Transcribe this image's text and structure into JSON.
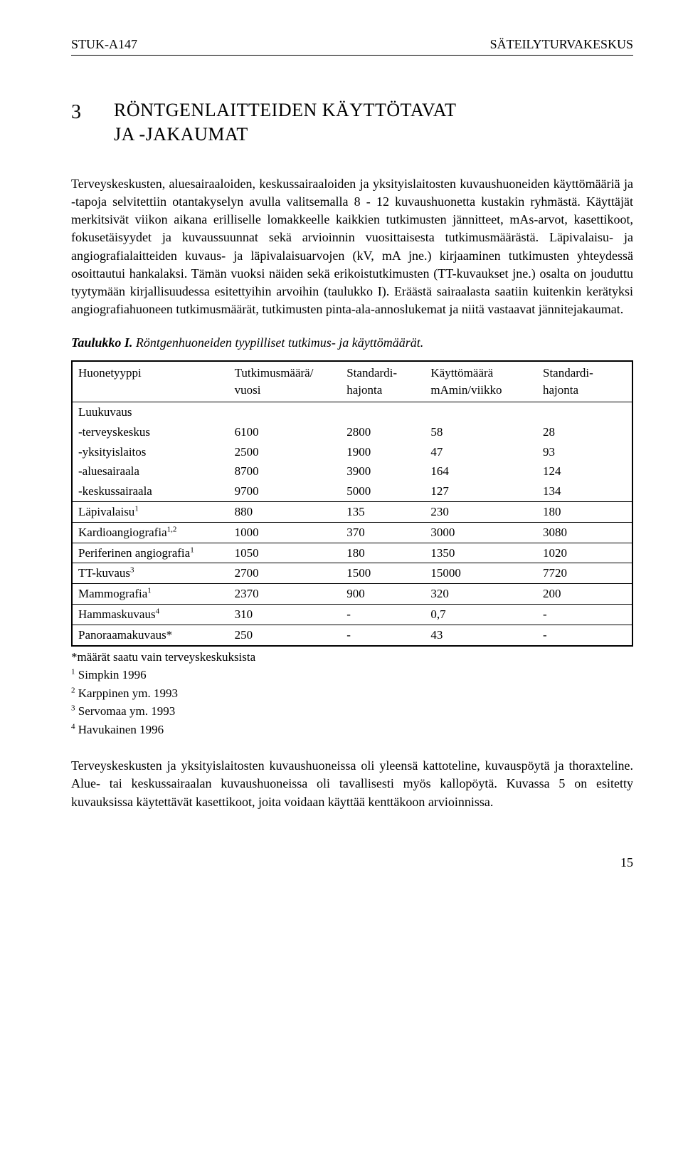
{
  "header": {
    "left": "STUK-A147",
    "right": "SÄTEILYTURVAKESKUS"
  },
  "section": {
    "number": "3",
    "title_line1": "RÖNTGENLAITTEIDEN KÄYTTÖTAVAT",
    "title_line2": "JA -JAKAUMAT"
  },
  "paragraphs": {
    "p1": "Terveyskeskusten, aluesairaaloiden, keskussairaaloiden ja yksityislaitosten kuvaushuoneiden käyttömääriä ja -tapoja selvitettiin otantakyselyn avulla valitsemalla 8 - 12 kuvaushuonetta kustakin ryhmästä. Käyttäjät merkitsivät viikon aikana erilliselle lomakkeelle kaikkien tutkimusten jännitteet, mAs-arvot, kasettikoot, fokusetäisyydet ja kuvaussuunnat sekä arvioinnin vuosittaisesta tutkimusmäärästä. Läpivalaisu- ja angiografialaitteiden kuvaus- ja läpivalaisuarvojen (kV, mA jne.) kirjaaminen tutkimusten yhteydessä osoittautui hankalaksi. Tämän vuoksi näiden sekä erikoistutkimusten (TT-kuvaukset jne.) osalta on jouduttu tyytymään kirjallisuudessa esitettyihin arvoihin (taulukko I). Eräästä sairaalasta saatiin kuitenkin kerätyksi angiografiahuoneen tutkimusmäärät, tutkimusten pinta-ala-annoslukemat ja niitä vastaavat jännitejakaumat.",
    "p2": "Terveyskeskusten ja yksityislaitosten kuvaushuoneissa oli yleensä kattoteline, kuvauspöytä ja thoraxteline. Alue- tai keskussairaalan kuvaushuoneissa oli tavallisesti myös kallopöytä. Kuvassa 5 on esitetty kuvauksissa käytettävät kasettikoot, joita voidaan käyttää kenttäkoon arvioinnissa."
  },
  "tableCaption": {
    "prefix": "Taulukko I. ",
    "rest": "Röntgenhuoneiden tyypilliset tutkimus- ja käyttömäärät."
  },
  "table": {
    "headers": {
      "h1": "Huonetyyppi",
      "h2a": "Tutkimusmäärä/",
      "h2b": "vuosi",
      "h3a": "Standardi-",
      "h3b": "hajonta",
      "h4a": "Käyttömäärä",
      "h4b": "mAmin/viikko",
      "h5a": "Standardi-",
      "h5b": "hajonta"
    },
    "group1": {
      "title": "Luukuvaus",
      "r1": {
        "label": "-terveyskeskus",
        "c1": "6100",
        "c2": "2800",
        "c3": "58",
        "c4": "28"
      },
      "r2": {
        "label": "-yksityislaitos",
        "c1": "2500",
        "c2": "1900",
        "c3": "47",
        "c4": "93"
      },
      "r3": {
        "label": "-aluesairaala",
        "c1": "8700",
        "c2": "3900",
        "c3": "164",
        "c4": "124"
      },
      "r4": {
        "label": "-keskussairaala",
        "c1": "9700",
        "c2": "5000",
        "c3": "127",
        "c4": "134"
      }
    },
    "rows": {
      "lapivalaisu": {
        "label": "Läpivalaisu",
        "sup": "1",
        "c1": "880",
        "c2": "135",
        "c3": "230",
        "c4": "180"
      },
      "kardio": {
        "label": "Kardioangiografia",
        "sup": "1,2",
        "c1": "1000",
        "c2": "370",
        "c3": "3000",
        "c4": "3080"
      },
      "perif": {
        "label": "Periferinen angiografia",
        "sup": "1",
        "c1": "1050",
        "c2": "180",
        "c3": "1350",
        "c4": "1020"
      },
      "tt": {
        "label": "TT-kuvaus",
        "sup": "3",
        "c1": "2700",
        "c2": "1500",
        "c3": "15000",
        "c4": "7720"
      },
      "mammo": {
        "label": "Mammografia",
        "sup": "1",
        "c1": "2370",
        "c2": "900",
        "c3": "320",
        "c4": "200"
      },
      "hammas": {
        "label": "Hammaskuvaus",
        "sup": "4",
        "c1": "310",
        "c2": "-",
        "c3": "0,7",
        "c4": "-"
      },
      "panoraama": {
        "label": "Panoraamakuvaus*",
        "sup": "",
        "c1": "250",
        "c2": "-",
        "c3": "43",
        "c4": "-"
      }
    }
  },
  "footnotes": {
    "star": "*määrät saatu vain terveyskeskuksista",
    "f1": "Simpkin 1996",
    "f2": "Karppinen ym. 1993",
    "f3": "Servomaa ym. 1993",
    "f4": "Havukainen 1996"
  },
  "pageNumber": "15"
}
